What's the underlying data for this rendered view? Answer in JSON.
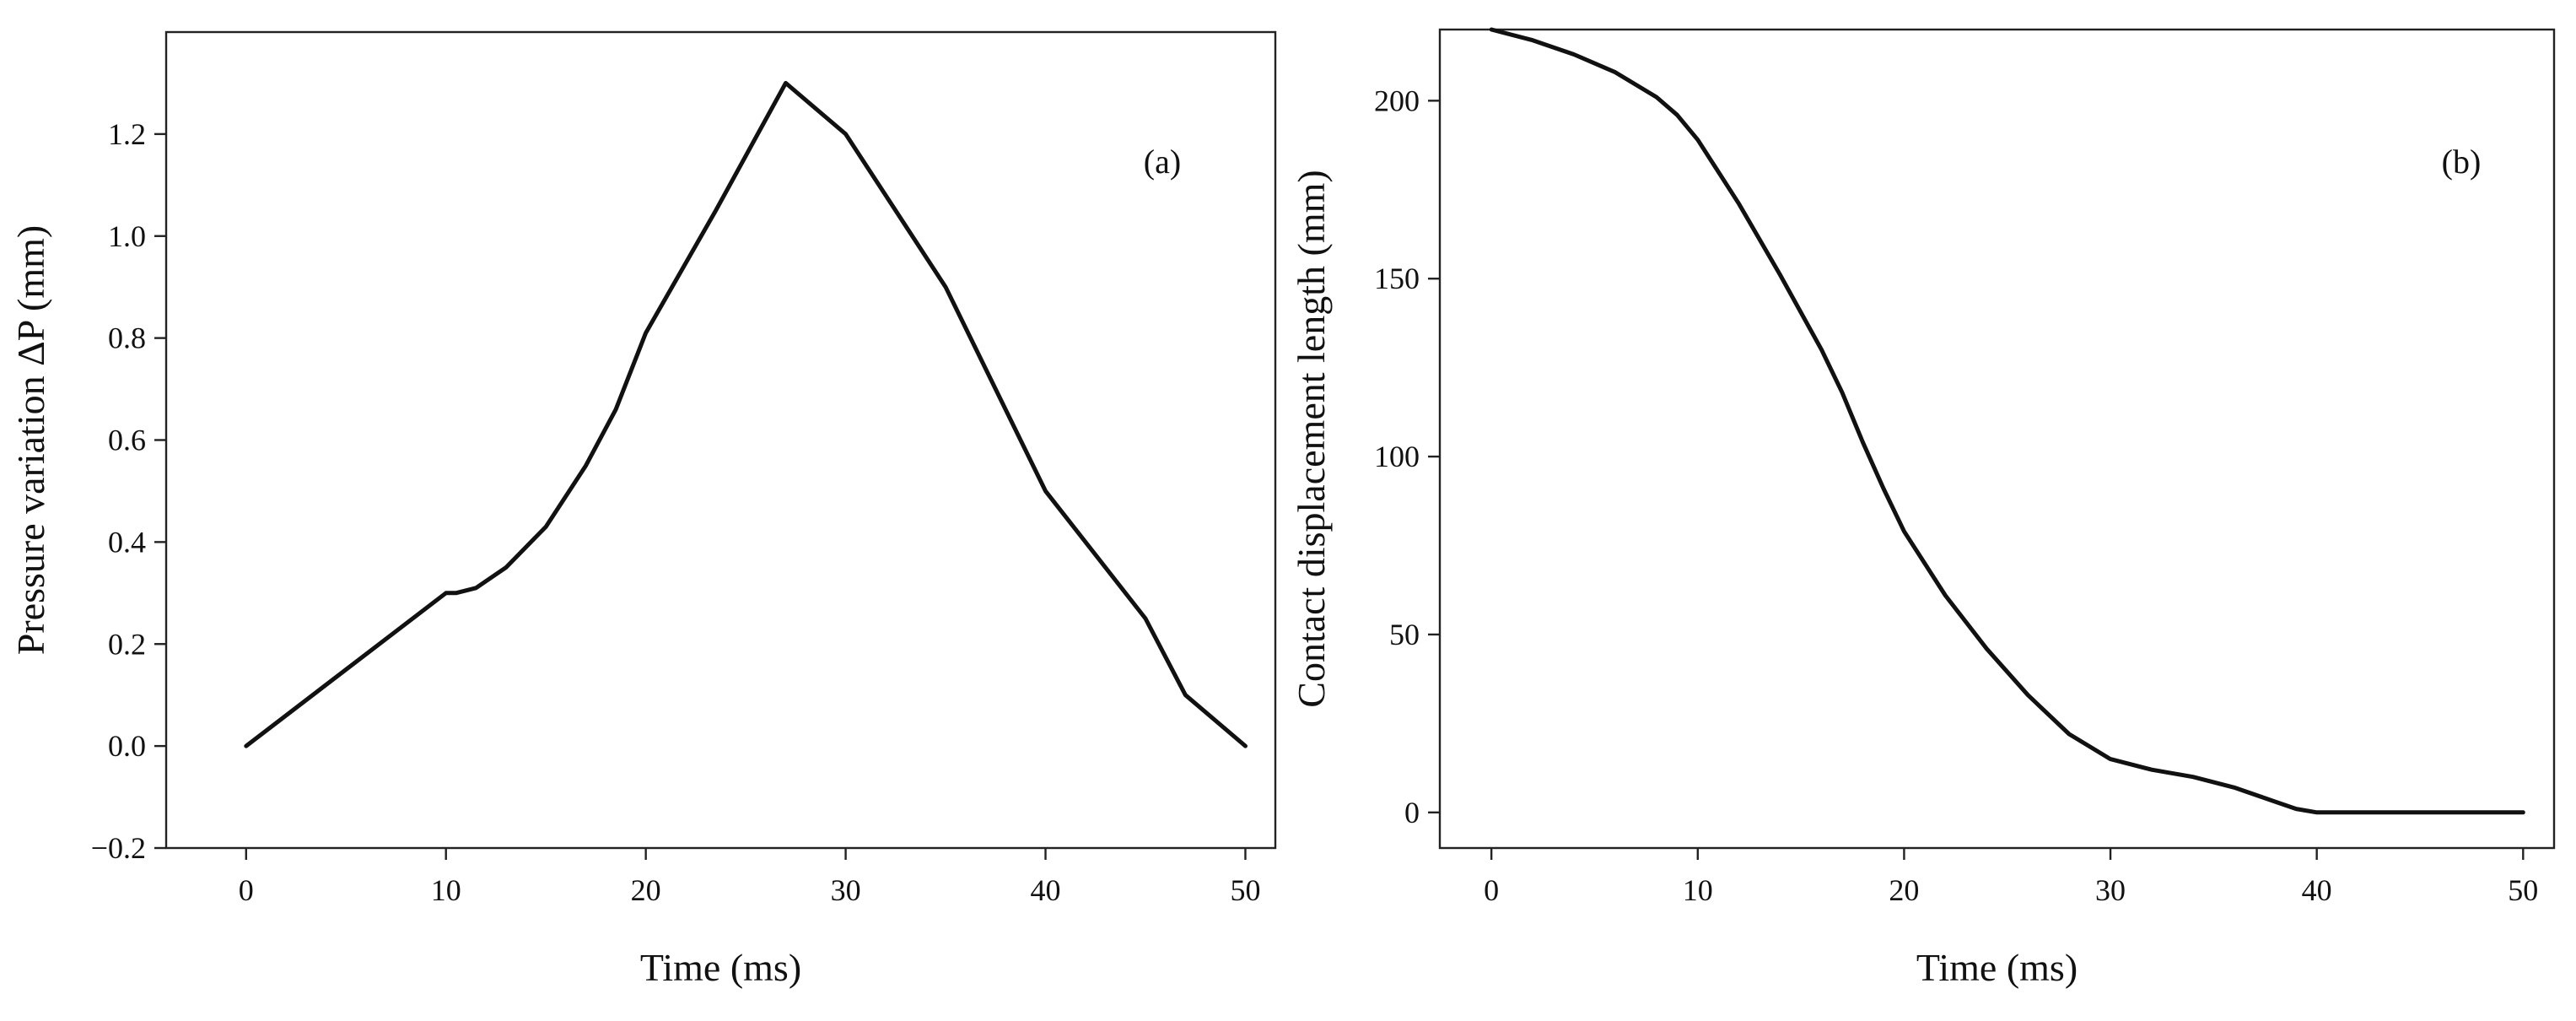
{
  "chart_data": [
    {
      "type": "line",
      "panel_label": "(a)",
      "xlabel": "Time (ms)",
      "ylabel": "Pressure variation ΔP (mm)",
      "xlim": [
        -4,
        51.5
      ],
      "ylim": [
        -0.2,
        1.4
      ],
      "xticks": [
        0,
        10,
        20,
        30,
        40,
        50
      ],
      "xtick_labels": [
        "0",
        "10",
        "20",
        "30",
        "40",
        "50"
      ],
      "yticks": [
        -0.2,
        0.0,
        0.2,
        0.4,
        0.6,
        0.8,
        1.0,
        1.2
      ],
      "ytick_labels": [
        "−0.2",
        "0.0",
        "0.2",
        "0.4",
        "0.6",
        "0.8",
        "1.0",
        "1.2"
      ],
      "grid": false,
      "series": [
        {
          "x": [
            0,
            10,
            10.5,
            11.5,
            13,
            15,
            17,
            18.5,
            20,
            23.5,
            27,
            30,
            35,
            40,
            45,
            47,
            50
          ],
          "y": [
            0.0,
            0.3,
            0.3,
            0.31,
            0.35,
            0.43,
            0.55,
            0.66,
            0.81,
            1.05,
            1.3,
            1.2,
            0.9,
            0.5,
            0.25,
            0.1,
            0.0
          ],
          "color": "#111111"
        }
      ]
    },
    {
      "type": "line",
      "panel_label": "(b)",
      "xlabel": "Time (ms)",
      "ylabel": "Contact displacement length (mm)",
      "xlim": [
        -2.5,
        51.5
      ],
      "ylim": [
        -10,
        220
      ],
      "xticks": [
        0,
        10,
        20,
        30,
        40,
        50
      ],
      "xtick_labels": [
        "0",
        "10",
        "20",
        "30",
        "40",
        "50"
      ],
      "yticks": [
        0,
        50,
        100,
        150,
        200
      ],
      "ytick_labels": [
        "0",
        "50",
        "100",
        "150",
        "200"
      ],
      "grid": false,
      "series": [
        {
          "x": [
            0,
            2,
            4,
            6,
            8,
            9,
            10,
            12,
            14,
            16,
            17,
            18,
            19,
            20,
            22,
            24,
            26,
            28,
            30,
            32,
            34,
            36,
            38,
            39,
            40,
            42,
            45,
            50
          ],
          "y": [
            220,
            217,
            213,
            208,
            201,
            196,
            189,
            171,
            151,
            130,
            118,
            104,
            91,
            79,
            61,
            46,
            33,
            22,
            15,
            12,
            10,
            7,
            3,
            1,
            0,
            0,
            0,
            0
          ],
          "color": "#111111"
        }
      ]
    }
  ]
}
